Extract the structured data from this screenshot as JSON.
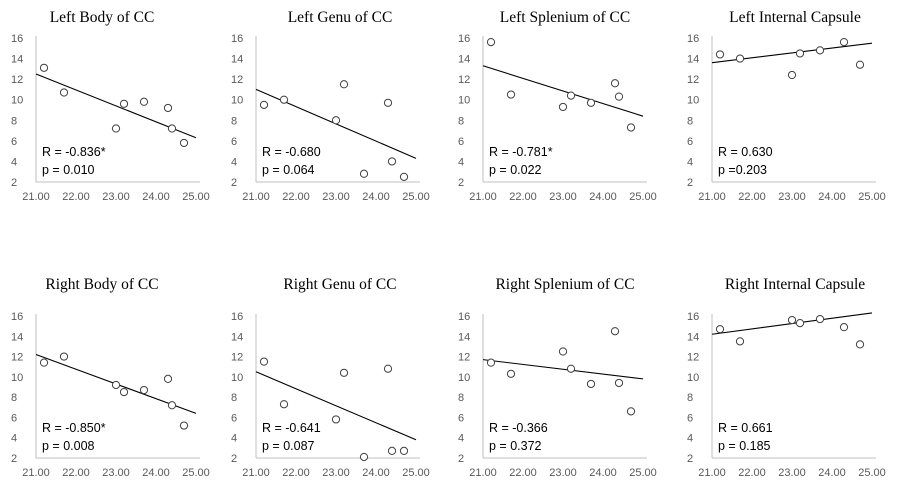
{
  "chart_data": [
    {
      "type": "scatter",
      "title": "Left  Body of CC",
      "xlim": [
        21.0,
        25.0
      ],
      "ylim": [
        2,
        16
      ],
      "xticks": [
        "21.00",
        "22.00",
        "23.00",
        "24.00",
        "25.00"
      ],
      "yticks": [
        "2",
        "4",
        "6",
        "8",
        "10",
        "12",
        "14",
        "16"
      ],
      "points": [
        [
          21.2,
          13.1
        ],
        [
          21.7,
          10.7
        ],
        [
          23.0,
          7.2
        ],
        [
          23.2,
          9.6
        ],
        [
          23.7,
          9.8
        ],
        [
          24.3,
          9.2
        ],
        [
          24.4,
          7.2
        ],
        [
          24.7,
          5.8
        ]
      ],
      "trendline": [
        [
          21.0,
          12.5
        ],
        [
          25.0,
          6.3
        ]
      ],
      "r_label": "R = -0.836*",
      "p_label": "p = 0.010"
    },
    {
      "type": "scatter",
      "title": "Left Genu of CC",
      "xlim": [
        21.0,
        25.0
      ],
      "ylim": [
        2,
        16
      ],
      "xticks": [
        "21.00",
        "22.00",
        "23.00",
        "24.00",
        "25.00"
      ],
      "yticks": [
        "2",
        "4",
        "6",
        "8",
        "10",
        "12",
        "14",
        "16"
      ],
      "points": [
        [
          21.2,
          9.5
        ],
        [
          21.7,
          10.0
        ],
        [
          23.0,
          8.0
        ],
        [
          23.2,
          11.5
        ],
        [
          23.7,
          2.8
        ],
        [
          24.3,
          9.7
        ],
        [
          24.4,
          4.0
        ],
        [
          24.7,
          2.5
        ]
      ],
      "trendline": [
        [
          21.0,
          11.0
        ],
        [
          25.0,
          4.3
        ]
      ],
      "r_label": "R = -0.680",
      "p_label": "p = 0.064"
    },
    {
      "type": "scatter",
      "title": "Left Splenium  of CC",
      "xlim": [
        21.0,
        25.0
      ],
      "ylim": [
        2,
        16
      ],
      "xticks": [
        "21.00",
        "22.00",
        "23.00",
        "24.00",
        "25.00"
      ],
      "yticks": [
        "2",
        "4",
        "6",
        "8",
        "10",
        "12",
        "14",
        "16"
      ],
      "points": [
        [
          21.2,
          15.6
        ],
        [
          21.7,
          10.5
        ],
        [
          23.0,
          9.3
        ],
        [
          23.2,
          10.4
        ],
        [
          23.7,
          9.7
        ],
        [
          24.3,
          11.6
        ],
        [
          24.4,
          10.3
        ],
        [
          24.7,
          7.3
        ]
      ],
      "trendline": [
        [
          21.0,
          13.3
        ],
        [
          25.0,
          8.4
        ]
      ],
      "r_label": "R = -0.781*",
      "p_label": "p = 0.022"
    },
    {
      "type": "scatter",
      "title": "Left  Internal Capsule",
      "xlim": [
        21.0,
        25.0
      ],
      "ylim": [
        2,
        16
      ],
      "xticks": [
        "21.00",
        "22.00",
        "23.00",
        "24.00",
        "25.00"
      ],
      "yticks": [
        "2",
        "4",
        "6",
        "8",
        "10",
        "12",
        "14",
        "16"
      ],
      "points": [
        [
          21.2,
          14.4
        ],
        [
          21.7,
          14.0
        ],
        [
          23.0,
          12.4
        ],
        [
          23.2,
          14.5
        ],
        [
          23.7,
          14.8
        ],
        [
          24.3,
          15.6
        ],
        [
          24.7,
          13.4
        ]
      ],
      "trendline": [
        [
          21.0,
          13.6
        ],
        [
          25.0,
          15.5
        ]
      ],
      "r_label": "R = 0.630",
      "p_label": "p =0.203"
    },
    {
      "type": "scatter",
      "title": "Right  Body of CC",
      "xlim": [
        21.0,
        25.0
      ],
      "ylim": [
        2,
        16
      ],
      "xticks": [
        "21.00",
        "22.00",
        "23.00",
        "24.00",
        "25.00"
      ],
      "yticks": [
        "2",
        "4",
        "6",
        "8",
        "10",
        "12",
        "14",
        "16"
      ],
      "points": [
        [
          21.2,
          11.4
        ],
        [
          21.7,
          12.0
        ],
        [
          23.0,
          9.2
        ],
        [
          23.2,
          8.5
        ],
        [
          23.7,
          8.7
        ],
        [
          24.3,
          9.8
        ],
        [
          24.4,
          7.2
        ],
        [
          24.7,
          5.2
        ]
      ],
      "trendline": [
        [
          21.0,
          12.2
        ],
        [
          25.0,
          6.4
        ]
      ],
      "r_label": "R = -0.850*",
      "p_label": "p = 0.008"
    },
    {
      "type": "scatter",
      "title": "Right  Genu of CC",
      "xlim": [
        21.0,
        25.0
      ],
      "ylim": [
        2,
        16
      ],
      "xticks": [
        "21.00",
        "22.00",
        "23.00",
        "24.00",
        "25.00"
      ],
      "yticks": [
        "2",
        "4",
        "6",
        "8",
        "10",
        "12",
        "14",
        "16"
      ],
      "points": [
        [
          21.2,
          11.5
        ],
        [
          21.7,
          7.3
        ],
        [
          23.0,
          5.8
        ],
        [
          23.2,
          10.4
        ],
        [
          23.7,
          2.1
        ],
        [
          24.3,
          10.8
        ],
        [
          24.4,
          2.7
        ],
        [
          24.7,
          2.7
        ]
      ],
      "trendline": [
        [
          21.0,
          10.5
        ],
        [
          25.0,
          3.8
        ]
      ],
      "r_label": "R = -0.641",
      "p_label": "p = 0.087"
    },
    {
      "type": "scatter",
      "title": "Right  Splenium  of CC",
      "xlim": [
        21.0,
        25.0
      ],
      "ylim": [
        2,
        16
      ],
      "xticks": [
        "21.00",
        "22.00",
        "23.00",
        "24.00",
        "25.00"
      ],
      "yticks": [
        "2",
        "4",
        "6",
        "8",
        "10",
        "12",
        "14",
        "16"
      ],
      "points": [
        [
          21.2,
          11.4
        ],
        [
          21.7,
          10.3
        ],
        [
          23.0,
          12.5
        ],
        [
          23.2,
          10.8
        ],
        [
          23.7,
          9.3
        ],
        [
          24.3,
          14.5
        ],
        [
          24.4,
          9.4
        ],
        [
          24.7,
          6.6
        ]
      ],
      "trendline": [
        [
          21.0,
          11.7
        ],
        [
          25.0,
          9.8
        ]
      ],
      "r_label": "R = -0.366",
      "p_label": "p = 0.372"
    },
    {
      "type": "scatter",
      "title": "Right  Internal  Capsule",
      "xlim": [
        21.0,
        25.0
      ],
      "ylim": [
        2,
        16
      ],
      "xticks": [
        "21.00",
        "22.00",
        "23.00",
        "24.00",
        "25.00"
      ],
      "yticks": [
        "2",
        "4",
        "6",
        "8",
        "10",
        "12",
        "14",
        "16"
      ],
      "points": [
        [
          21.2,
          14.7
        ],
        [
          21.7,
          13.5
        ],
        [
          23.0,
          15.6
        ],
        [
          23.2,
          15.3
        ],
        [
          23.7,
          15.7
        ],
        [
          24.3,
          14.9
        ],
        [
          24.7,
          13.2
        ]
      ],
      "trendline": [
        [
          21.0,
          14.2
        ],
        [
          25.0,
          16.3
        ]
      ],
      "r_label": "R = 0.661",
      "p_label": "p = 0.185"
    }
  ]
}
